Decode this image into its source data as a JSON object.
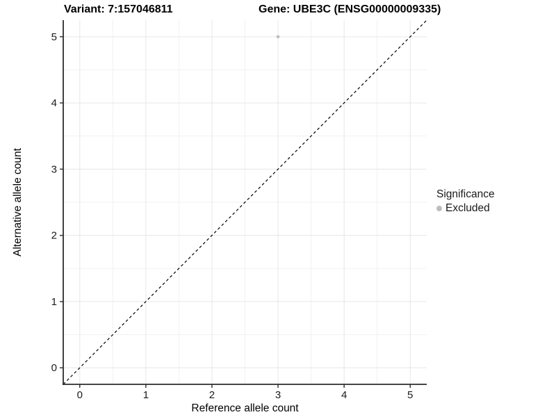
{
  "header": {
    "variant_title": "Variant: 7:157046811",
    "gene_title": "Gene: UBE3C (ENSG00000009335)"
  },
  "chart_data": {
    "type": "scatter",
    "title": "Variant: 7:157046811  /  Gene: UBE3C (ENSG00000009335)",
    "xlabel": "Reference allele count",
    "ylabel": "Alternative allele count",
    "xlim": [
      -0.25,
      5.25
    ],
    "ylim": [
      -0.25,
      5.25
    ],
    "x_ticks": [
      0,
      1,
      2,
      3,
      4,
      5
    ],
    "y_ticks": [
      0,
      1,
      2,
      3,
      4,
      5
    ],
    "x_minor_ticks": [
      0.5,
      1.5,
      2.5,
      3.5,
      4.5
    ],
    "y_minor_ticks": [
      0.5,
      1.5,
      2.5,
      3.5,
      4.5
    ],
    "grid": true,
    "legend_position": "right",
    "series": [
      {
        "name": "Excluded",
        "color": "#bdbdbd",
        "points": [
          {
            "x": 3,
            "y": 5
          }
        ]
      }
    ],
    "reference_line": {
      "kind": "identity",
      "style": "dashed",
      "color": "#000000",
      "from": [
        -0.25,
        -0.25
      ],
      "to": [
        5.25,
        5.25
      ]
    }
  },
  "legend": {
    "title": "Significance",
    "items": [
      {
        "label": "Excluded",
        "color": "#bdbdbd"
      }
    ]
  },
  "colors": {
    "background": "#ffffff",
    "grid_major": "#e6e6e6",
    "grid_minor": "#f1f1f1",
    "axis_line": "#2b2b2b",
    "tick_mark": "#2b2b2b",
    "point": "#bdbdbd"
  }
}
